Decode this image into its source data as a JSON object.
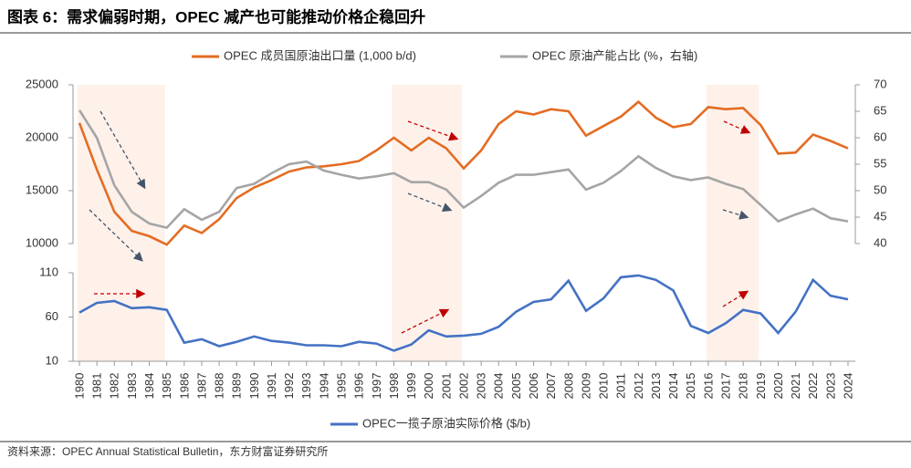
{
  "chart_data": [
    {
      "type": "line",
      "title": "图表 6：需求偏弱时期，OPEC 减产也可能推动价格企稳回升",
      "ylim": [
        10000,
        25000
      ],
      "yticks": [
        10000,
        15000,
        20000,
        25000
      ],
      "y2lim": [
        40,
        70
      ],
      "y2ticks": [
        40,
        45,
        50,
        55,
        60,
        65,
        70
      ],
      "highlights": [
        {
          "from": "1980",
          "to": "1985"
        },
        {
          "from": "1998",
          "to": "2002"
        },
        {
          "from": "2016",
          "to": "2019"
        }
      ],
      "series": [
        {
          "name": "OPEC 成员国原油出口量 (1,000 b/d)",
          "color": "#e46c23",
          "axis": "y",
          "values": [
            21400,
            17000,
            13000,
            11200,
            10700,
            9900,
            11700,
            11000,
            12300,
            14300,
            15300,
            16000,
            16800,
            17200,
            17300,
            17500,
            17800,
            18800,
            20000,
            18800,
            20000,
            19000,
            17100,
            18800,
            21300,
            22500,
            22200,
            22700,
            22500,
            20200,
            21100,
            22000,
            23400,
            21900,
            21000,
            21300,
            22900,
            22700,
            22800,
            21200,
            18500,
            18600,
            20300,
            19700,
            19000
          ]
        },
        {
          "name": "OPEC 原油产能占比 (%，右轴)",
          "color": "#a5a5a5",
          "axis": "y2",
          "values": [
            65.2,
            60,
            51,
            46,
            43.8,
            43,
            46.5,
            44.5,
            46,
            50.5,
            51.3,
            53.3,
            55,
            55.5,
            53.8,
            53,
            52.3,
            52.7,
            53.3,
            51.6,
            51.6,
            50.2,
            46.8,
            49,
            51.5,
            53,
            53,
            53.5,
            54,
            50.2,
            51.5,
            53.7,
            56.5,
            54.3,
            52.7,
            52,
            52.5,
            51.3,
            50.3,
            47.3,
            44.2,
            45.5,
            46.6,
            44.8,
            44.2
          ]
        }
      ]
    },
    {
      "type": "line",
      "categories": [
        "1980",
        "1981",
        "1982",
        "1983",
        "1984",
        "1985",
        "1986",
        "1987",
        "1988",
        "1989",
        "1990",
        "1991",
        "1992",
        "1993",
        "1994",
        "1995",
        "1996",
        "1997",
        "1998",
        "1999",
        "2000",
        "2001",
        "2002",
        "2003",
        "2004",
        "2005",
        "2006",
        "2007",
        "2008",
        "2009",
        "2010",
        "2011",
        "2012",
        "2013",
        "2014",
        "2015",
        "2016",
        "2017",
        "2018",
        "2019",
        "2020",
        "2021",
        "2022",
        "2023",
        "2024"
      ],
      "ylim": [
        10,
        110
      ],
      "yticks": [
        10,
        60,
        110
      ],
      "series": [
        {
          "name": "OPEC一揽子原油实际价格 ($/b)",
          "color": "#4472c4",
          "values": [
            65,
            76,
            78,
            70,
            71,
            68,
            31,
            35,
            27,
            32,
            38,
            33,
            31,
            28,
            28,
            27,
            32,
            30,
            22,
            29,
            45,
            38,
            39,
            41,
            49,
            66,
            77,
            80,
            101,
            67,
            81,
            105,
            107,
            102,
            90,
            50,
            42,
            53,
            68,
            64,
            42,
            66,
            102,
            84,
            80
          ]
        }
      ]
    }
  ],
  "source": "资料来源：OPEC Annual Statistical Bulletin，东方财富证券研究所"
}
